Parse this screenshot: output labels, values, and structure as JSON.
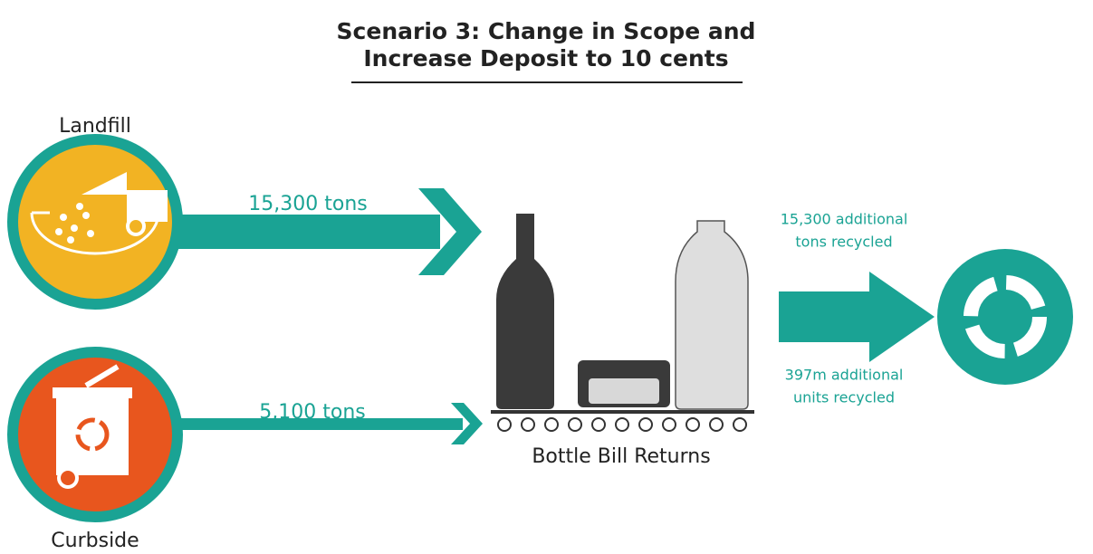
{
  "title": {
    "lines": [
      "Scenario 3: Change in Scope and",
      "Increase Deposit to 10 cents"
    ]
  },
  "sources": [
    {
      "label": "Landfill",
      "flow": "15,300 tons"
    },
    {
      "label": "Curbside",
      "flow": "5,100 tons"
    }
  ],
  "center": {
    "label": "Bottle Bill Returns"
  },
  "outcomes": [
    {
      "lines": [
        "15,300 additional",
        "tons recycled"
      ]
    },
    {
      "lines": [
        "397m additional",
        "units recycled"
      ]
    }
  ]
}
